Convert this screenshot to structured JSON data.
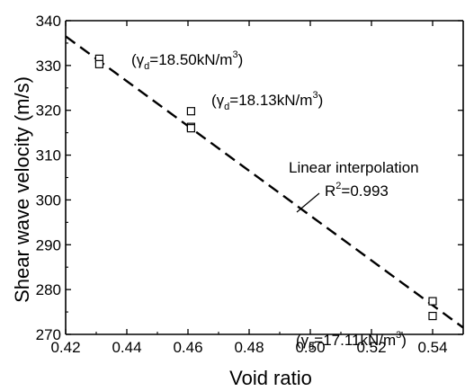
{
  "chart_data": {
    "type": "scatter",
    "xlabel": "Void ratio",
    "ylabel": "Shear wave velocity (m/s)",
    "xlim": [
      0.42,
      0.55
    ],
    "ylim": [
      270,
      340
    ],
    "xticks": [
      "0.42",
      "0.44",
      "0.46",
      "0.48",
      "0.50",
      "0.52",
      "0.54"
    ],
    "yticks": [
      "270",
      "280",
      "290",
      "300",
      "310",
      "320",
      "330",
      "340"
    ],
    "grid": false,
    "series": [
      {
        "marker": "open-square",
        "points": [
          {
            "x": 0.431,
            "y": 331.5
          },
          {
            "x": 0.431,
            "y": 330.3
          },
          {
            "x": 0.461,
            "y": 319.8
          },
          {
            "x": 0.461,
            "y": 316.3
          },
          {
            "x": 0.461,
            "y": 316.0
          },
          {
            "x": 0.54,
            "y": 277.4
          },
          {
            "x": 0.54,
            "y": 274.1
          }
        ]
      }
    ],
    "fit_line": {
      "style": "dashed",
      "x": [
        0.42,
        0.55
      ],
      "y": [
        336.5,
        271.5
      ]
    },
    "annotations": [
      {
        "id": "gd-1850",
        "gamma_sub": "d",
        "value": "=18.50kN/m",
        "sup": "3"
      },
      {
        "id": "gd-1813",
        "gamma_sub": "d",
        "value": "=18.13kN/m",
        "sup": "3"
      },
      {
        "id": "gd-1711",
        "gamma_sub": "d",
        "value": "=17.11kN/m",
        "sup": "3"
      },
      {
        "id": "linear-interp",
        "text": "Linear interpolation"
      },
      {
        "id": "r-squared",
        "r": "R",
        "sup": "2",
        "value": "=0.993"
      }
    ]
  }
}
